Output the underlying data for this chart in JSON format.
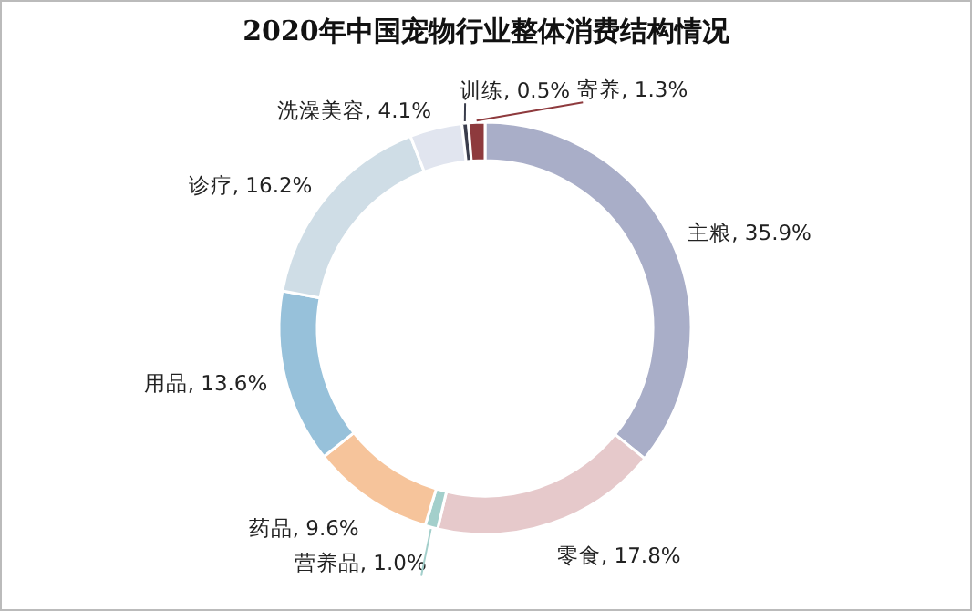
{
  "chart_data": {
    "type": "donut",
    "title": "2020年中国宠物行业整体消费结构情况",
    "categories": [
      "主粮",
      "零食",
      "营养品",
      "药品",
      "用品",
      "诊疗",
      "洗澡美容",
      "训练",
      "寄养"
    ],
    "values": [
      35.9,
      17.8,
      1.0,
      9.6,
      13.6,
      16.2,
      4.1,
      0.5,
      1.3
    ],
    "value_labels": [
      "35.9%",
      "17.8%",
      "1.0%",
      "9.6%",
      "13.6%",
      "16.2%",
      "4.1%",
      "0.5%",
      "1.3%"
    ],
    "colors": [
      "#a9aec8",
      "#e6c9cb",
      "#a3cfcb",
      "#f6c49b",
      "#97c1da",
      "#cfdde6",
      "#e1e5ef",
      "#3a3d4c",
      "#8e3a3d"
    ],
    "legend": false
  }
}
